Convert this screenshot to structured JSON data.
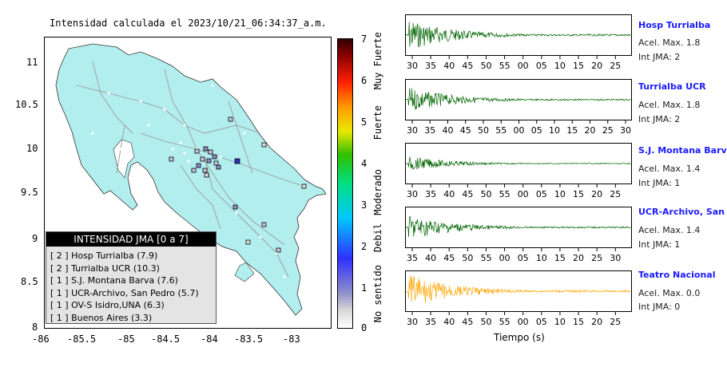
{
  "map": {
    "title": "Intensidad calculada el 2023/10/21_06:34:37_a.m.",
    "x_ticks": [
      "-86",
      "-85.5",
      "-85",
      "-84.5",
      "-84",
      "-83.5",
      "-83"
    ],
    "y_ticks": [
      "11",
      "10.5",
      "10",
      "9.5",
      "9",
      "8.5",
      "8"
    ],
    "land_color": "#b2eeee",
    "legend": {
      "title": "INTENSIDAD JMA [0 a 7]",
      "items": [
        "[ 2 ]  Hosp Turrialba (7.9)",
        "[ 2 ]  Turrialba UCR (10.3)",
        "[ 1 ]  S.J. Montana Barva (7.6)",
        "[ 1 ]  UCR-Archivo, San Pedro (5.7)",
        "[ 1 ]  OV-S Isidro,UNA (6.3)",
        "[ 1 ]  Buenos Aires (3.3)"
      ]
    }
  },
  "scale": {
    "numbers": [
      "7",
      "6",
      "5",
      "4",
      "3",
      "2",
      "1",
      "0"
    ],
    "words": [
      "Muy Fuerte",
      "Fuerte",
      "Moderado",
      "Debil",
      "No sentido"
    ]
  },
  "waveforms": {
    "x_label": "Tiempo (s)",
    "panels": [
      {
        "name": "Hosp Turrialba",
        "accel": "Acel. Max. 1.8",
        "jma": "Int JMA: 2",
        "color": "#006400",
        "ticks": [
          "30",
          "35",
          "40",
          "45",
          "50",
          "55",
          "00",
          "05",
          "10",
          "15",
          "20",
          "25"
        ]
      },
      {
        "name": "Turrialba UCR",
        "accel": "Acel. Max. 1.8",
        "jma": "Int JMA: 2",
        "color": "#006400",
        "ticks": [
          "30",
          "35",
          "40",
          "45",
          "50",
          "55",
          "00",
          "05",
          "10",
          "15",
          "20",
          "25",
          "30"
        ]
      },
      {
        "name": "S.J. Montana Barva",
        "accel": "Acel. Max. 1.4",
        "jma": "Int JMA: 1",
        "color": "#006400",
        "ticks": [
          "30",
          "35",
          "40",
          "45",
          "50",
          "55",
          "00",
          "05",
          "10",
          "15",
          "20",
          "25"
        ]
      },
      {
        "name": "UCR-Archivo, San Pedro",
        "accel": "Acel. Max. 1.4",
        "jma": "Int JMA: 1",
        "color": "#006400",
        "ticks": [
          "35",
          "40",
          "45",
          "50",
          "55",
          "00",
          "05",
          "10",
          "15",
          "20",
          "25",
          "30"
        ]
      },
      {
        "name": "Teatro Nacional",
        "accel": "Acel. Max. 0.0",
        "jma": "Int JMA: 0",
        "color": "#ffa500",
        "ticks": [
          "30",
          "35",
          "40",
          "45",
          "50",
          "55",
          "00",
          "05",
          "10",
          "15",
          "20",
          "25"
        ]
      }
    ]
  }
}
